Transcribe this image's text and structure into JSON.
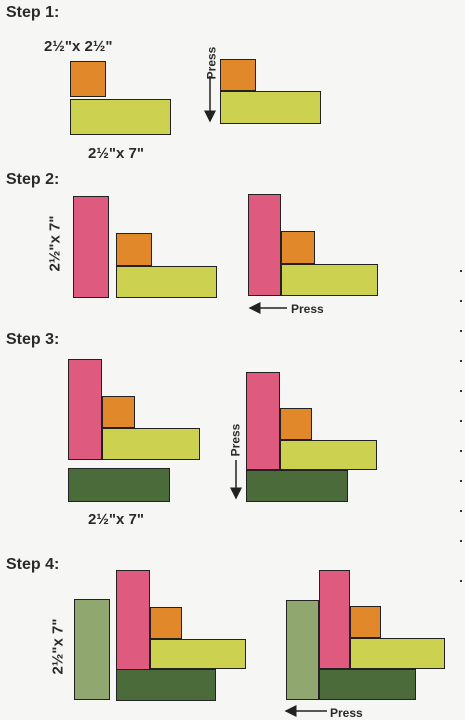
{
  "colors": {
    "orange": "#e0882a",
    "lime": "#ccd14f",
    "pink": "#de5a7f",
    "dark_green": "#4c6b3a",
    "light_green": "#90a86f"
  },
  "steps": [
    {
      "title": "Step 1:",
      "square_label": "2½\"x 2½\"",
      "strip_label": "2½\"x 7\"",
      "press_label": "Press"
    },
    {
      "title": "Step 2:",
      "strip_label": "2½\"x 7\"",
      "press_label": "Press"
    },
    {
      "title": "Step 3:",
      "strip_label": "2½\"x 7\"",
      "press_label": "Press"
    },
    {
      "title": "Step 4:",
      "strip_label": "2½\"x 7\"",
      "press_label": "Press"
    }
  ]
}
